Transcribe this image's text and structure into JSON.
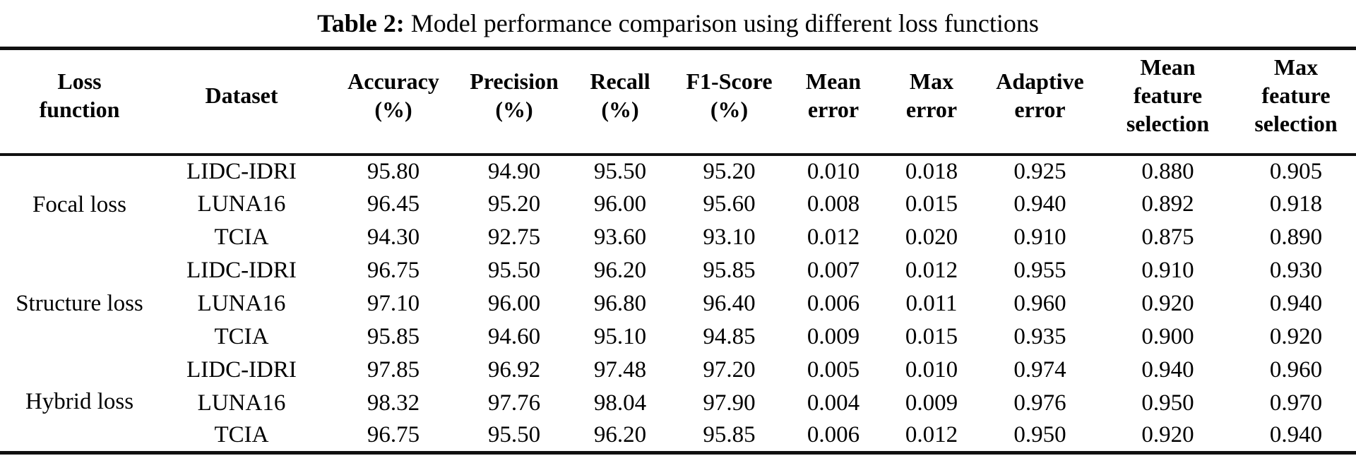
{
  "page": {
    "colors": {
      "background": "#ffffff",
      "text": "#000000",
      "rule": "#101010"
    }
  },
  "caption": {
    "prefix": "Table 2:",
    "text": "Model performance comparison using different loss functions"
  },
  "table": {
    "headers": [
      {
        "id": "loss-function",
        "lines": [
          "Loss",
          "function"
        ]
      },
      {
        "id": "dataset",
        "lines": [
          "Dataset"
        ]
      },
      {
        "id": "accuracy",
        "lines": [
          "Accuracy",
          "(%)"
        ]
      },
      {
        "id": "precision",
        "lines": [
          "Precision",
          "(%)"
        ]
      },
      {
        "id": "recall",
        "lines": [
          "Recall",
          "(%)"
        ]
      },
      {
        "id": "f1-score",
        "lines": [
          "F1-Score",
          "(%)"
        ]
      },
      {
        "id": "mean-error",
        "lines": [
          "Mean",
          "error"
        ]
      },
      {
        "id": "max-error",
        "lines": [
          "Max",
          "error"
        ]
      },
      {
        "id": "adaptive-error",
        "lines": [
          "Adaptive",
          "error"
        ]
      },
      {
        "id": "mean-feature-selection",
        "lines": [
          "Mean",
          "feature",
          "selection"
        ]
      },
      {
        "id": "max-feature-selection",
        "lines": [
          "Max",
          "feature",
          "selection"
        ]
      }
    ],
    "groups": [
      {
        "label": "Focal loss",
        "rows": [
          {
            "dataset": "LIDC-IDRI",
            "values": [
              "95.80",
              "94.90",
              "95.50",
              "95.20",
              "0.010",
              "0.018",
              "0.925",
              "0.880",
              "0.905"
            ]
          },
          {
            "dataset": "LUNA16",
            "values": [
              "96.45",
              "95.20",
              "96.00",
              "95.60",
              "0.008",
              "0.015",
              "0.940",
              "0.892",
              "0.918"
            ]
          },
          {
            "dataset": "TCIA",
            "values": [
              "94.30",
              "92.75",
              "93.60",
              "93.10",
              "0.012",
              "0.020",
              "0.910",
              "0.875",
              "0.890"
            ]
          }
        ]
      },
      {
        "label": "Structure loss",
        "rows": [
          {
            "dataset": "LIDC-IDRI",
            "values": [
              "96.75",
              "95.50",
              "96.20",
              "95.85",
              "0.007",
              "0.012",
              "0.955",
              "0.910",
              "0.930"
            ]
          },
          {
            "dataset": "LUNA16",
            "values": [
              "97.10",
              "96.00",
              "96.80",
              "96.40",
              "0.006",
              "0.011",
              "0.960",
              "0.920",
              "0.940"
            ]
          },
          {
            "dataset": "TCIA",
            "values": [
              "95.85",
              "94.60",
              "95.10",
              "94.85",
              "0.009",
              "0.015",
              "0.935",
              "0.900",
              "0.920"
            ]
          }
        ]
      },
      {
        "label": "Hybrid loss",
        "rows": [
          {
            "dataset": "LIDC-IDRI",
            "values": [
              "97.85",
              "96.92",
              "97.48",
              "97.20",
              "0.005",
              "0.010",
              "0.974",
              "0.940",
              "0.960"
            ]
          },
          {
            "dataset": "LUNA16",
            "values": [
              "98.32",
              "97.76",
              "98.04",
              "97.90",
              "0.004",
              "0.009",
              "0.976",
              "0.950",
              "0.970"
            ]
          },
          {
            "dataset": "TCIA",
            "values": [
              "96.75",
              "95.50",
              "96.20",
              "95.85",
              "0.006",
              "0.012",
              "0.950",
              "0.920",
              "0.940"
            ]
          }
        ]
      }
    ]
  }
}
